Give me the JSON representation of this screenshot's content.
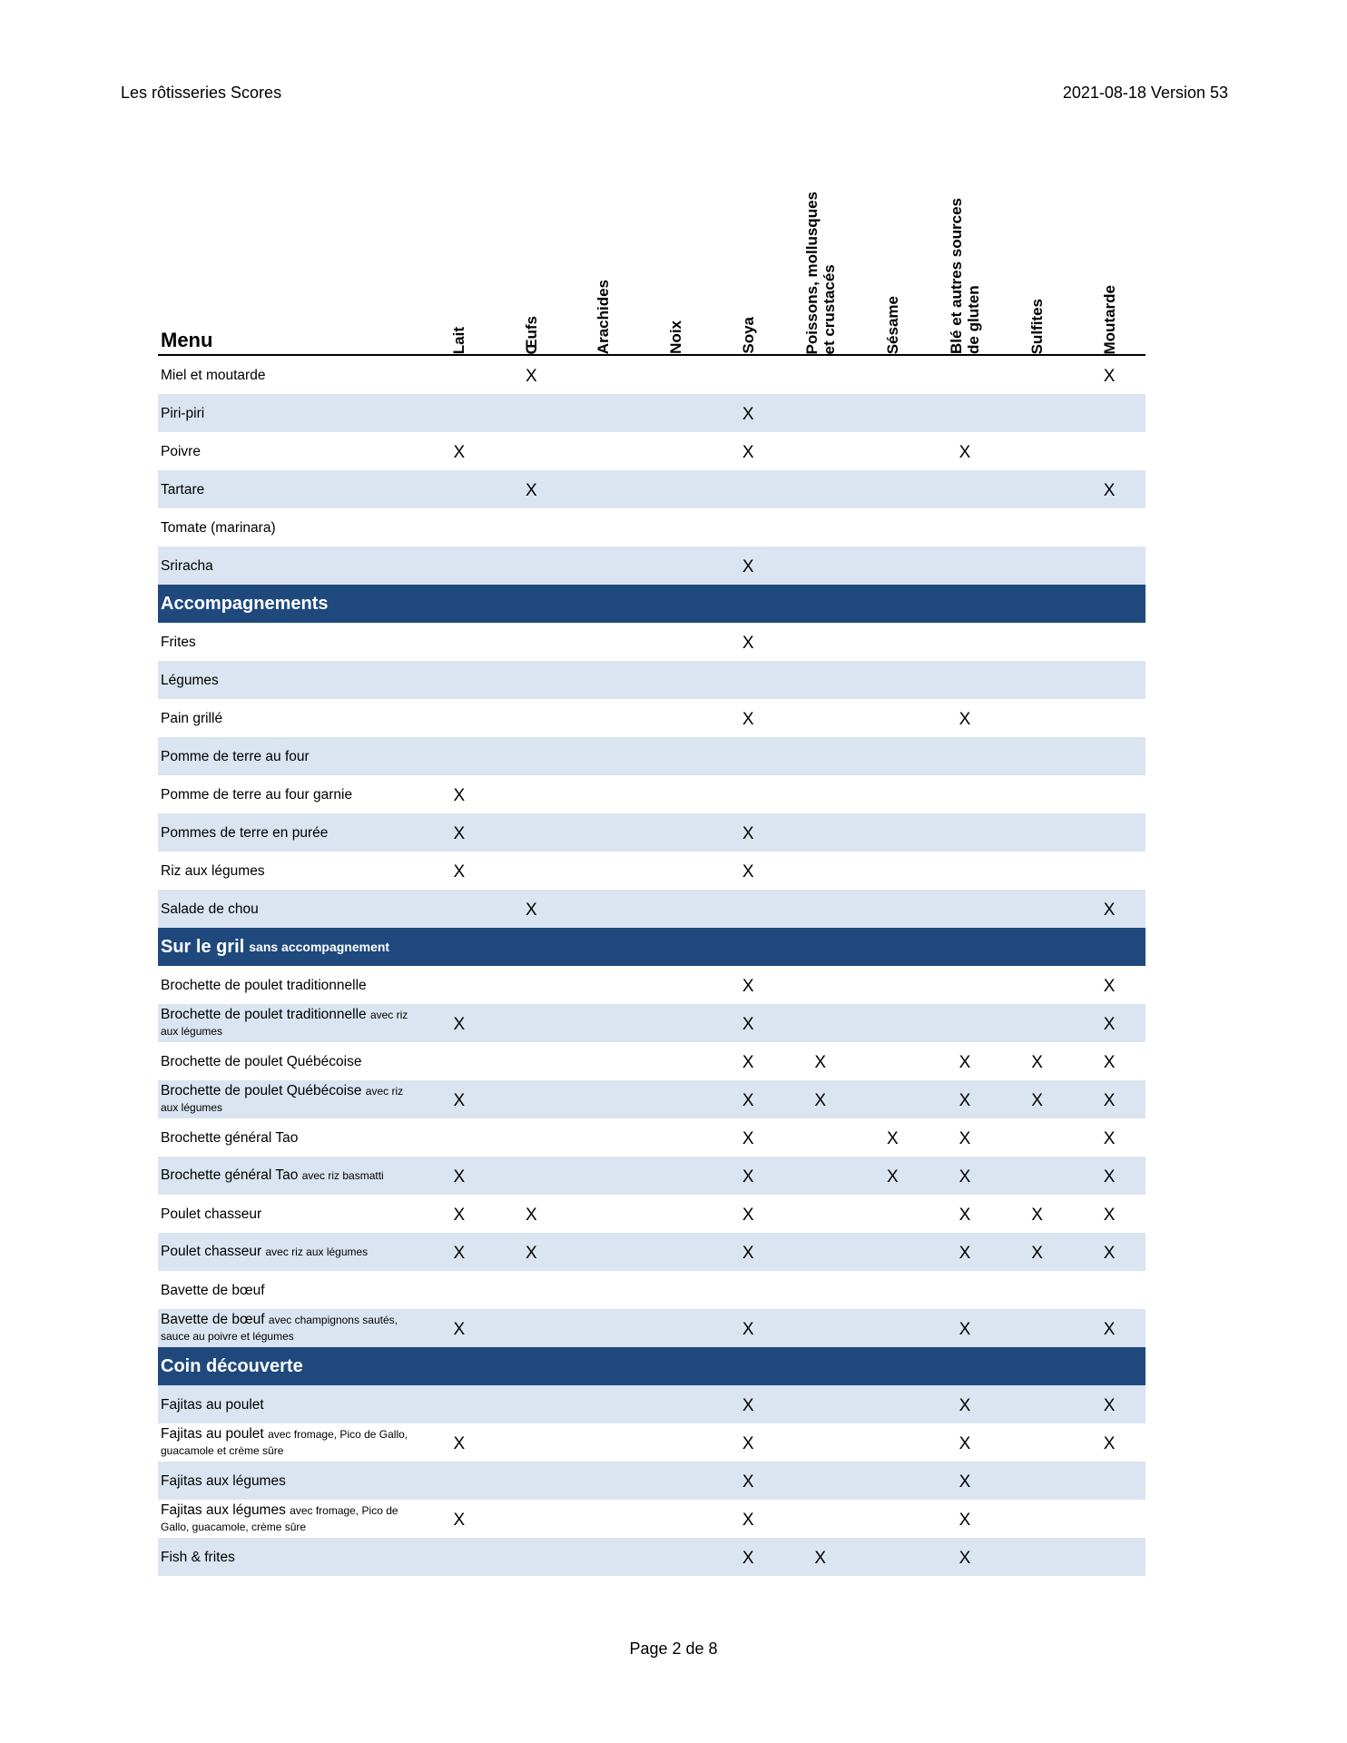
{
  "page_header": {
    "left": "Les rôtisseries Scores",
    "right": "2021-08-18 Version 53"
  },
  "footer": "Page 2 de 8",
  "colors": {
    "section_bg": "#1f497d",
    "stripe": "#dbe5f1"
  },
  "table": {
    "menu_label": "Menu",
    "columns": [
      "Lait",
      "Œufs",
      "Arachides",
      "Noix",
      "Soya",
      "Poissons, mollusques\net crustacés",
      "Sésame",
      "Blé et autres sources\nde gluten",
      "Sulfites",
      "Moutarde"
    ],
    "groups": [
      {
        "title": "",
        "subtitle": "",
        "rows": [
          {
            "name": "Miel et moutarde",
            "detail": "",
            "shade": false,
            "marks": [
              "",
              "X",
              "",
              "",
              "",
              "",
              "",
              "",
              "",
              "X"
            ]
          },
          {
            "name": "Piri-piri",
            "detail": "",
            "shade": true,
            "marks": [
              "",
              "",
              "",
              "",
              "X",
              "",
              "",
              "",
              "",
              ""
            ]
          },
          {
            "name": "Poivre",
            "detail": "",
            "shade": false,
            "marks": [
              "X",
              "",
              "",
              "",
              "X",
              "",
              "",
              "X",
              "",
              ""
            ]
          },
          {
            "name": "Tartare",
            "detail": "",
            "shade": true,
            "marks": [
              "",
              "X",
              "",
              "",
              "",
              "",
              "",
              "",
              "",
              "X"
            ]
          },
          {
            "name": "Tomate (marinara)",
            "detail": "",
            "shade": false,
            "marks": [
              "",
              "",
              "",
              "",
              "",
              "",
              "",
              "",
              "",
              ""
            ]
          },
          {
            "name": "Sriracha",
            "detail": "",
            "shade": true,
            "marks": [
              "",
              "",
              "",
              "",
              "X",
              "",
              "",
              "",
              "",
              ""
            ]
          }
        ]
      },
      {
        "title": "Accompagnements",
        "subtitle": "",
        "rows": [
          {
            "name": "Frites",
            "detail": "",
            "shade": false,
            "marks": [
              "",
              "",
              "",
              "",
              "X",
              "",
              "",
              "",
              "",
              ""
            ]
          },
          {
            "name": "Légumes",
            "detail": "",
            "shade": true,
            "marks": [
              "",
              "",
              "",
              "",
              "",
              "",
              "",
              "",
              "",
              ""
            ]
          },
          {
            "name": "Pain grillé",
            "detail": "",
            "shade": false,
            "marks": [
              "",
              "",
              "",
              "",
              "X",
              "",
              "",
              "X",
              "",
              ""
            ]
          },
          {
            "name": "Pomme de terre au four",
            "detail": "",
            "shade": true,
            "marks": [
              "",
              "",
              "",
              "",
              "",
              "",
              "",
              "",
              "",
              ""
            ]
          },
          {
            "name": "Pomme de terre au four garnie",
            "detail": "",
            "shade": false,
            "marks": [
              "X",
              "",
              "",
              "",
              "",
              "",
              "",
              "",
              "",
              ""
            ]
          },
          {
            "name": "Pommes de terre en purée",
            "detail": "",
            "shade": true,
            "marks": [
              "X",
              "",
              "",
              "",
              "X",
              "",
              "",
              "",
              "",
              ""
            ]
          },
          {
            "name": "Riz aux légumes",
            "detail": "",
            "shade": false,
            "marks": [
              "X",
              "",
              "",
              "",
              "X",
              "",
              "",
              "",
              "",
              ""
            ]
          },
          {
            "name": "Salade de chou",
            "detail": "",
            "shade": true,
            "marks": [
              "",
              "X",
              "",
              "",
              "",
              "",
              "",
              "",
              "",
              "X"
            ]
          }
        ]
      },
      {
        "title": "Sur le gril",
        "subtitle": "sans accompagnement",
        "rows": [
          {
            "name": "Brochette de poulet traditionnelle",
            "detail": "",
            "shade": false,
            "marks": [
              "",
              "",
              "",
              "",
              "X",
              "",
              "",
              "",
              "",
              "X"
            ]
          },
          {
            "name": "Brochette de poulet traditionnelle",
            "detail": "avec riz aux légumes",
            "shade": true,
            "marks": [
              "X",
              "",
              "",
              "",
              "X",
              "",
              "",
              "",
              "",
              "X"
            ]
          },
          {
            "name": "Brochette de poulet Québécoise",
            "detail": "",
            "shade": false,
            "marks": [
              "",
              "",
              "",
              "",
              "X",
              "X",
              "",
              "X",
              "X",
              "X"
            ]
          },
          {
            "name": "Brochette de poulet Québécoise",
            "detail": "avec riz aux légumes",
            "shade": true,
            "marks": [
              "X",
              "",
              "",
              "",
              "X",
              "X",
              "",
              "X",
              "X",
              "X"
            ]
          },
          {
            "name": "Brochette général Tao",
            "detail": "",
            "shade": false,
            "marks": [
              "",
              "",
              "",
              "",
              "X",
              "",
              "X",
              "X",
              "",
              "X"
            ]
          },
          {
            "name": "Brochette général Tao",
            "detail": "avec riz basmatti",
            "shade": true,
            "marks": [
              "X",
              "",
              "",
              "",
              "X",
              "",
              "X",
              "X",
              "",
              "X"
            ]
          },
          {
            "name": "Poulet chasseur",
            "detail": "",
            "shade": false,
            "marks": [
              "X",
              "X",
              "",
              "",
              "X",
              "",
              "",
              "X",
              "X",
              "X"
            ]
          },
          {
            "name": "Poulet chasseur",
            "detail": "avec riz aux légumes",
            "shade": true,
            "marks": [
              "X",
              "X",
              "",
              "",
              "X",
              "",
              "",
              "X",
              "X",
              "X"
            ]
          },
          {
            "name": "Bavette de bœuf",
            "detail": "",
            "shade": false,
            "marks": [
              "",
              "",
              "",
              "",
              "",
              "",
              "",
              "",
              "",
              ""
            ]
          },
          {
            "name": "Bavette de bœuf",
            "detail": "avec champignons sautés, sauce au poivre et légumes",
            "shade": true,
            "marks": [
              "X",
              "",
              "",
              "",
              "X",
              "",
              "",
              "X",
              "",
              "X"
            ]
          }
        ]
      },
      {
        "title": "Coin découverte",
        "subtitle": "",
        "rows": [
          {
            "name": "Fajitas au poulet",
            "detail": "",
            "shade": true,
            "marks": [
              "",
              "",
              "",
              "",
              "X",
              "",
              "",
              "X",
              "",
              "X"
            ]
          },
          {
            "name": "Fajitas au poulet",
            "detail": "avec fromage, Pico de Gallo, guacamole et crème sûre",
            "shade": false,
            "marks": [
              "X",
              "",
              "",
              "",
              "X",
              "",
              "",
              "X",
              "",
              "X"
            ]
          },
          {
            "name": "Fajitas aux légumes",
            "detail": "",
            "shade": true,
            "marks": [
              "",
              "",
              "",
              "",
              "X",
              "",
              "",
              "X",
              "",
              ""
            ]
          },
          {
            "name": "Fajitas aux légumes",
            "detail": "avec fromage, Pico de Gallo, guacamole, crème sûre",
            "shade": false,
            "marks": [
              "X",
              "",
              "",
              "",
              "X",
              "",
              "",
              "X",
              "",
              ""
            ]
          },
          {
            "name": "Fish & frites",
            "detail": "",
            "shade": true,
            "marks": [
              "",
              "",
              "",
              "",
              "X",
              "X",
              "",
              "X",
              "",
              ""
            ]
          }
        ]
      }
    ]
  }
}
